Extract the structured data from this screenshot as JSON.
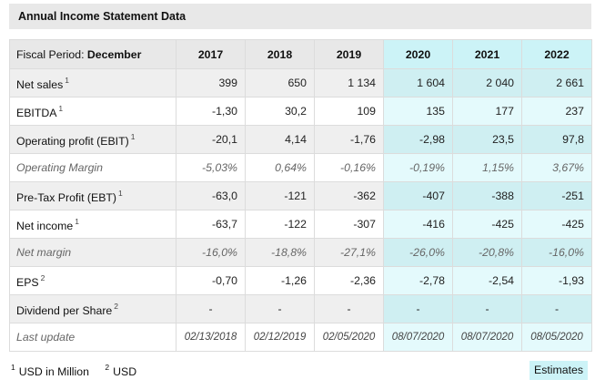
{
  "title": "Annual Income Statement Data",
  "period_label": "Fiscal Period:",
  "period_value": "December",
  "years": [
    "2017",
    "2018",
    "2019",
    "2020",
    "2021",
    "2022"
  ],
  "estimate_columns": [
    3,
    4,
    5
  ],
  "rows": [
    {
      "label": "Net sales",
      "sup": "1",
      "values": [
        "399",
        "650",
        "1 134",
        "1 604",
        "2 040",
        "2 661"
      ]
    },
    {
      "label": "EBITDA",
      "sup": "1",
      "values": [
        "-1,30",
        "30,2",
        "109",
        "135",
        "177",
        "237"
      ]
    },
    {
      "label": "Operating profit (EBIT)",
      "sup": "1",
      "values": [
        "-20,1",
        "4,14",
        "-1,76",
        "-2,98",
        "23,5",
        "97,8"
      ]
    },
    {
      "label": "Operating Margin",
      "sup": "",
      "values": [
        "-5,03%",
        "0,64%",
        "-0,16%",
        "-0,19%",
        "1,15%",
        "3,67%"
      ]
    },
    {
      "label": "Pre-Tax Profit (EBT)",
      "sup": "1",
      "values": [
        "-63,0",
        "-121",
        "-362",
        "-407",
        "-388",
        "-251"
      ]
    },
    {
      "label": "Net income",
      "sup": "1",
      "values": [
        "-63,7",
        "-122",
        "-307",
        "-416",
        "-425",
        "-425"
      ]
    },
    {
      "label": "Net margin",
      "sup": "",
      "values": [
        "-16,0%",
        "-18,8%",
        "-27,1%",
        "-26,0%",
        "-20,8%",
        "-16,0%"
      ]
    },
    {
      "label": "EPS",
      "sup": "2",
      "values": [
        "-0,70",
        "-1,26",
        "-2,36",
        "-2,78",
        "-2,54",
        "-1,93"
      ]
    },
    {
      "label": "Dividend per Share",
      "sup": "2",
      "values": [
        "-",
        "-",
        "-",
        "-",
        "-",
        "-"
      ]
    },
    {
      "label": "Last update",
      "sup": "",
      "values": [
        "02/13/2018",
        "02/12/2019",
        "02/05/2020",
        "08/07/2020",
        "08/07/2020",
        "08/05/2020"
      ]
    }
  ],
  "footnotes": {
    "fn1_mark": "1",
    "fn1_text": "USD in Million",
    "fn2_mark": "2",
    "fn2_text": "USD"
  },
  "estimates_label": "Estimates",
  "colors": {
    "header_gray": "#e8e8e8",
    "estimate_header": "#ccf3f7",
    "estimate_cell": "#e4fafc",
    "estimate_cell_alt": "#cfeff2",
    "row_alt": "#efefef"
  }
}
